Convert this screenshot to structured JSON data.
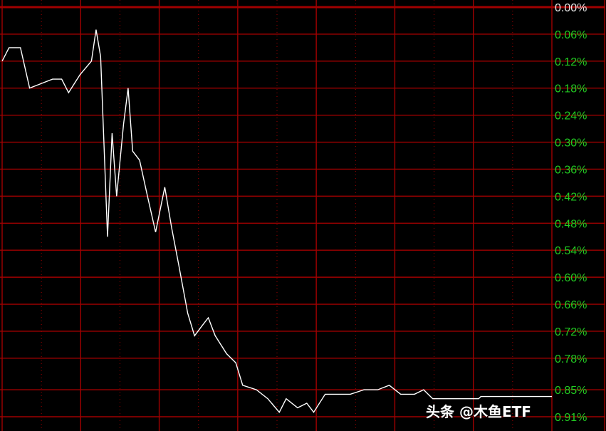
{
  "chart_data": {
    "type": "line",
    "title": "",
    "xlabel": "",
    "ylabel": "",
    "y_direction": "downward (larger percent plotted lower)",
    "ylim": [
      0.0,
      0.91
    ],
    "y_tick_labels": [
      "0.00%",
      "0.06%",
      "0.12%",
      "0.18%",
      "0.24%",
      "0.30%",
      "0.36%",
      "0.42%",
      "0.48%",
      "0.54%",
      "0.60%",
      "0.66%",
      "0.72%",
      "0.78%",
      "0.85%",
      "0.91%"
    ],
    "y_ticks": [
      0.0,
      0.06,
      0.12,
      0.18,
      0.24,
      0.3,
      0.36,
      0.42,
      0.48,
      0.54,
      0.6,
      0.66,
      0.72,
      0.78,
      0.85,
      0.91
    ],
    "xlim": [
      0,
      240
    ],
    "grid": true,
    "colors": {
      "background": "#000000",
      "grid": "#a00000",
      "line": "#ffffff",
      "tick_positive": "#22cc22",
      "tick_zero": "#e8e8e8"
    },
    "series": [
      {
        "x": [
          0,
          3,
          8,
          12,
          17,
          22,
          26,
          29,
          34,
          39,
          41,
          43,
          46,
          48,
          50,
          53,
          55,
          57,
          60,
          63,
          67,
          71,
          74,
          77,
          81,
          84,
          87,
          90,
          93,
          98,
          102,
          105,
          111,
          116,
          121,
          124,
          129,
          133,
          136,
          141,
          146,
          152,
          158,
          164,
          169,
          174,
          180,
          184,
          188,
          208,
          209,
          240
        ],
        "y": [
          0.12,
          0.09,
          0.09,
          0.18,
          0.17,
          0.16,
          0.16,
          0.19,
          0.15,
          0.12,
          0.05,
          0.11,
          0.51,
          0.28,
          0.42,
          0.26,
          0.18,
          0.32,
          0.34,
          0.41,
          0.5,
          0.4,
          0.49,
          0.57,
          0.68,
          0.73,
          0.71,
          0.69,
          0.73,
          0.77,
          0.79,
          0.84,
          0.85,
          0.87,
          0.9,
          0.87,
          0.89,
          0.88,
          0.9,
          0.86,
          0.86,
          0.86,
          0.85,
          0.85,
          0.84,
          0.86,
          0.86,
          0.85,
          0.87,
          0.87,
          0.865,
          0.865
        ]
      }
    ]
  },
  "watermark": "头条 @木鱼ETF"
}
